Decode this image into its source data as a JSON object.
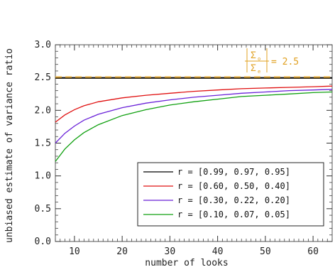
{
  "chart_data": {
    "type": "line",
    "title": "",
    "xlabel": "number of looks",
    "ylabel": "unbiased estimate of variance ratio",
    "xlim": [
      6,
      64
    ],
    "ylim": [
      0.0,
      3.0
    ],
    "x_ticks": [
      10,
      20,
      30,
      40,
      50,
      60
    ],
    "x_tick_labels": [
      "10",
      "20",
      "30",
      "40",
      "50",
      "60"
    ],
    "y_ticks": [
      0.0,
      0.5,
      1.0,
      1.5,
      2.0,
      2.5,
      3.0
    ],
    "y_tick_labels": [
      "0.0",
      "0.5",
      "1.0",
      "1.5",
      "2.0",
      "2.5",
      "3.0"
    ],
    "grid": false,
    "legend_placement": "bottom-right",
    "reference_line": {
      "y": 2.5,
      "value_text": "= 2.5",
      "colors": [
        "#222222",
        "#f0b030"
      ]
    },
    "series": [
      {
        "name": "r = [0.99, 0.97, 0.95]",
        "color": "#000000",
        "x": [
          6,
          8,
          10,
          15,
          20,
          30,
          40,
          50,
          64
        ],
        "values": [
          2.49,
          2.49,
          2.49,
          2.49,
          2.49,
          2.49,
          2.49,
          2.49,
          2.49
        ]
      },
      {
        "name": "r = [0.60, 0.50, 0.40]",
        "color": "#e01010",
        "x": [
          6,
          8,
          10,
          12,
          15,
          20,
          25,
          30,
          35,
          40,
          45,
          50,
          55,
          60,
          64
        ],
        "values": [
          1.82,
          1.93,
          2.01,
          2.07,
          2.13,
          2.19,
          2.23,
          2.26,
          2.29,
          2.31,
          2.33,
          2.34,
          2.35,
          2.36,
          2.37
        ]
      },
      {
        "name": "r = [0.30, 0.22, 0.20]",
        "color": "#6a22d8",
        "x": [
          6,
          8,
          10,
          12,
          15,
          20,
          25,
          30,
          35,
          40,
          45,
          50,
          55,
          60,
          64
        ],
        "values": [
          1.5,
          1.65,
          1.76,
          1.85,
          1.94,
          2.04,
          2.11,
          2.16,
          2.2,
          2.23,
          2.26,
          2.28,
          2.3,
          2.31,
          2.32
        ]
      },
      {
        "name": "r = [0.10, 0.07, 0.05]",
        "color": "#10a010",
        "x": [
          6,
          8,
          10,
          12,
          15,
          20,
          25,
          30,
          35,
          40,
          45,
          50,
          55,
          60,
          64
        ],
        "values": [
          1.22,
          1.41,
          1.55,
          1.66,
          1.78,
          1.92,
          2.01,
          2.08,
          2.13,
          2.17,
          2.21,
          2.23,
          2.25,
          2.27,
          2.28
        ]
      }
    ]
  }
}
